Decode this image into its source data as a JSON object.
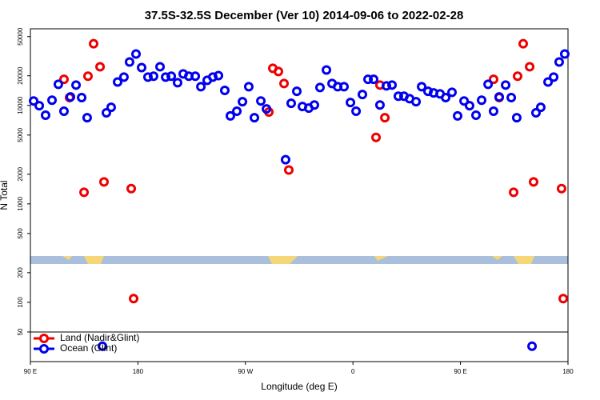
{
  "chart_data": {
    "type": "scatter",
    "title": "37.5S-32.5S December (Ver 10)   2014-09-06 to 2022-02-28",
    "x_label": "Longitude (deg E)",
    "y_label": "N Total",
    "log_y": true,
    "legend_position": "lower left",
    "xlim": [
      90,
      540
    ],
    "ylim": [
      25,
      60000
    ],
    "xticks": [
      {
        "value": 90,
        "label": "90 E"
      },
      180,
      {
        "value": 270,
        "label": "90 W"
      },
      {
        "value": 360,
        "label": "0"
      },
      {
        "value": 450,
        "label": "90 E"
      },
      {
        "value": 540,
        "label": "180"
      }
    ],
    "yticks": [
      50,
      100,
      200,
      500,
      1000,
      2000,
      5000,
      10000,
      20000,
      50000
    ],
    "series": [
      {
        "name": "Land (Nadir&Glint)",
        "color": "#ee0000",
        "x": [
          118.1,
          122.8,
          134.9,
          138.2,
          142.9,
          148.3,
          151.6,
          174.4,
          176.4,
          289.6,
          292.9,
          297.6,
          302.3,
          306.3,
          379.3,
          382.6,
          386.7,
          477.7,
          482.4,
          494.5,
          497.8,
          502.5,
          507.9,
          511.2,
          534.6,
          536
        ],
        "values": [
          18400,
          12000,
          1310,
          19800,
          42300,
          24700,
          1670,
          1430,
          109,
          8570,
          23800,
          22100,
          16700,
          2210,
          4730,
          16100,
          7510,
          18400,
          12000,
          1310,
          19800,
          42300,
          24700,
          1670,
          1430,
          109
        ]
      },
      {
        "name": "Ocean (Glint)",
        "color": "#0000ee",
        "x": [
          92.7,
          97.4,
          102.7,
          108.1,
          113.4,
          118.1,
          123.5,
          128.2,
          132.9,
          137.5,
          150.3,
          153.6,
          157.6,
          163,
          168.3,
          173,
          178.4,
          183.1,
          188.4,
          193.1,
          198.5,
          203.2,
          207.9,
          213.2,
          217.9,
          222.6,
          228,
          232.7,
          238,
          242.7,
          247.4,
          252.7,
          257.4,
          262.8,
          267.5,
          272.8,
          277.5,
          282.9,
          287.6,
          303.6,
          308.3,
          313,
          317.7,
          323,
          327.7,
          332.4,
          337.8,
          342.5,
          347.2,
          352.5,
          357.9,
          362.6,
          367.9,
          372.6,
          377.3,
          382.6,
          388,
          392.7,
          398,
          402.7,
          407.4,
          412.8,
          417.5,
          422.8,
          427.5,
          432.9,
          437.6,
          442.9,
          447.6,
          453,
          457.6,
          463,
          467.7,
          473.1,
          477.7,
          482.4,
          487.8,
          492.5,
          497.1,
          509.9,
          513.2,
          517.2,
          523.3,
          528,
          532.6,
          537.3
        ],
        "values": [
          11100,
          9940,
          7960,
          11300,
          16400,
          8730,
          12200,
          16100,
          12000,
          7510,
          35.8,
          8410,
          9570,
          17300,
          19400,
          27600,
          33300,
          24200,
          19400,
          19800,
          24700,
          19400,
          19800,
          17000,
          20900,
          19800,
          19800,
          15500,
          18000,
          19400,
          20100,
          14200,
          7820,
          8730,
          10900,
          15500,
          7510,
          11100,
          9220,
          2810,
          10500,
          13900,
          9750,
          9400,
          10100,
          15200,
          22900,
          16700,
          15500,
          15500,
          10700,
          8730,
          12900,
          18400,
          18400,
          10100,
          15800,
          16100,
          12400,
          12400,
          11700,
          10900,
          15500,
          13900,
          13400,
          13100,
          12000,
          13600,
          7820,
          11100,
          9940,
          7960,
          11300,
          16400,
          8730,
          12200,
          16100,
          12000,
          7510,
          35.8,
          8410,
          9570,
          17300,
          19400,
          27600,
          33300
        ]
      }
    ]
  }
}
